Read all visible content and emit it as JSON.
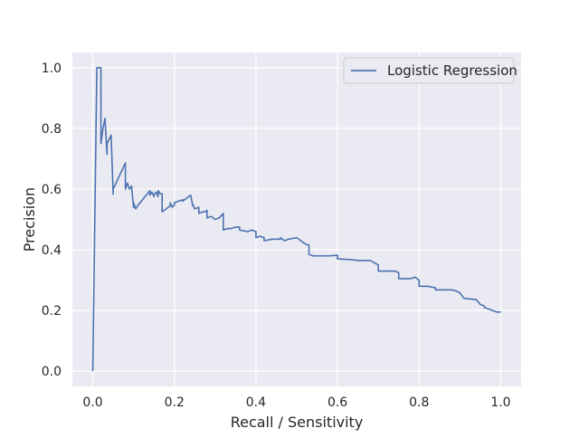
{
  "chart_data": {
    "type": "line",
    "title": "",
    "xlabel": "Recall / Sensitivity",
    "ylabel": "Precision",
    "xlim": [
      -0.05,
      1.05
    ],
    "ylim": [
      -0.05,
      1.05
    ],
    "xticks": [
      0.0,
      0.2,
      0.4,
      0.6,
      0.8,
      1.0
    ],
    "yticks": [
      0.0,
      0.2,
      0.4,
      0.6,
      0.8,
      1.0
    ],
    "xtick_labels": [
      "0.0",
      "0.2",
      "0.4",
      "0.6",
      "0.8",
      "1.0"
    ],
    "ytick_labels": [
      "0.0",
      "0.2",
      "0.4",
      "0.6",
      "0.8",
      "1.0"
    ],
    "grid": true,
    "legend_position": "upper right",
    "colors": {
      "background": "#eaeaf2",
      "grid": "#ffffff",
      "series": "#4c72b0"
    },
    "series": [
      {
        "name": "Logistic Regression",
        "x": [
          0.0,
          0.01,
          0.02,
          0.02,
          0.025,
          0.03,
          0.035,
          0.035,
          0.045,
          0.05,
          0.05,
          0.08,
          0.08,
          0.085,
          0.09,
          0.095,
          0.1,
          0.1,
          0.105,
          0.11,
          0.11,
          0.14,
          0.14,
          0.145,
          0.15,
          0.15,
          0.155,
          0.16,
          0.16,
          0.165,
          0.17,
          0.17,
          0.19,
          0.19,
          0.195,
          0.2,
          0.2,
          0.22,
          0.22,
          0.24,
          0.245,
          0.245,
          0.25,
          0.26,
          0.26,
          0.27,
          0.275,
          0.28,
          0.28,
          0.29,
          0.3,
          0.31,
          0.32,
          0.32,
          0.33,
          0.34,
          0.35,
          0.36,
          0.36,
          0.38,
          0.39,
          0.4,
          0.4,
          0.41,
          0.42,
          0.42,
          0.44,
          0.46,
          0.46,
          0.47,
          0.48,
          0.5,
          0.51,
          0.52,
          0.53,
          0.53,
          0.54,
          0.56,
          0.58,
          0.6,
          0.6,
          0.63,
          0.65,
          0.68,
          0.7,
          0.7,
          0.74,
          0.75,
          0.75,
          0.78,
          0.79,
          0.8,
          0.8,
          0.82,
          0.84,
          0.84,
          0.88,
          0.89,
          0.9,
          0.91,
          0.94,
          0.95,
          0.96,
          0.96,
          0.98,
          0.99,
          1.0
        ],
        "y": [
          0.0,
          1.0,
          1.0,
          0.75,
          0.8,
          0.833,
          0.714,
          0.75,
          0.778,
          0.583,
          0.6,
          0.686,
          0.6,
          0.62,
          0.6,
          0.61,
          0.54,
          0.555,
          0.535,
          0.545,
          0.545,
          0.595,
          0.58,
          0.59,
          0.575,
          0.58,
          0.59,
          0.575,
          0.595,
          0.585,
          0.585,
          0.525,
          0.545,
          0.555,
          0.54,
          0.548,
          0.555,
          0.565,
          0.56,
          0.58,
          0.545,
          0.55,
          0.535,
          0.54,
          0.52,
          0.525,
          0.525,
          0.53,
          0.505,
          0.51,
          0.5,
          0.505,
          0.52,
          0.465,
          0.47,
          0.47,
          0.475,
          0.475,
          0.465,
          0.46,
          0.465,
          0.46,
          0.44,
          0.445,
          0.44,
          0.43,
          0.435,
          0.435,
          0.44,
          0.43,
          0.435,
          0.44,
          0.43,
          0.42,
          0.415,
          0.385,
          0.38,
          0.38,
          0.38,
          0.382,
          0.37,
          0.368,
          0.365,
          0.365,
          0.35,
          0.33,
          0.33,
          0.325,
          0.305,
          0.305,
          0.31,
          0.3,
          0.28,
          0.28,
          0.275,
          0.268,
          0.268,
          0.265,
          0.258,
          0.24,
          0.236,
          0.22,
          0.215,
          0.21,
          0.2,
          0.195,
          0.195
        ]
      }
    ]
  }
}
